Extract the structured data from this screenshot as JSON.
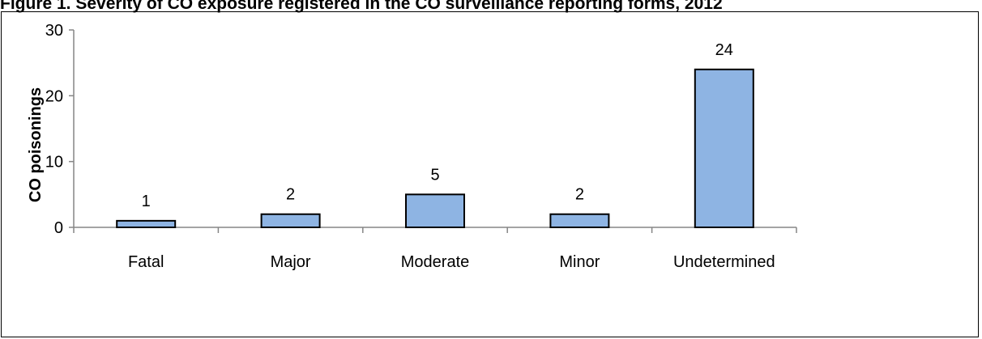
{
  "title": "Figure 1. Severity of CO exposure registered in the CO surveillance reporting forms, 2012",
  "chart_data": {
    "type": "bar",
    "categories": [
      "Fatal",
      "Major",
      "Moderate",
      "Minor",
      "Undetermined"
    ],
    "values": [
      1,
      2,
      5,
      2,
      24
    ],
    "data_labels": [
      "1",
      "2",
      "5",
      "2",
      "24"
    ],
    "ylabel": "CO poisonings",
    "xlabel": "",
    "ylim": [
      0,
      30
    ],
    "yticks": [
      0,
      10,
      20,
      30
    ],
    "grid": false,
    "legend": "none",
    "bar_color": "#8eb4e3",
    "bar_edge_color": "#000000"
  }
}
